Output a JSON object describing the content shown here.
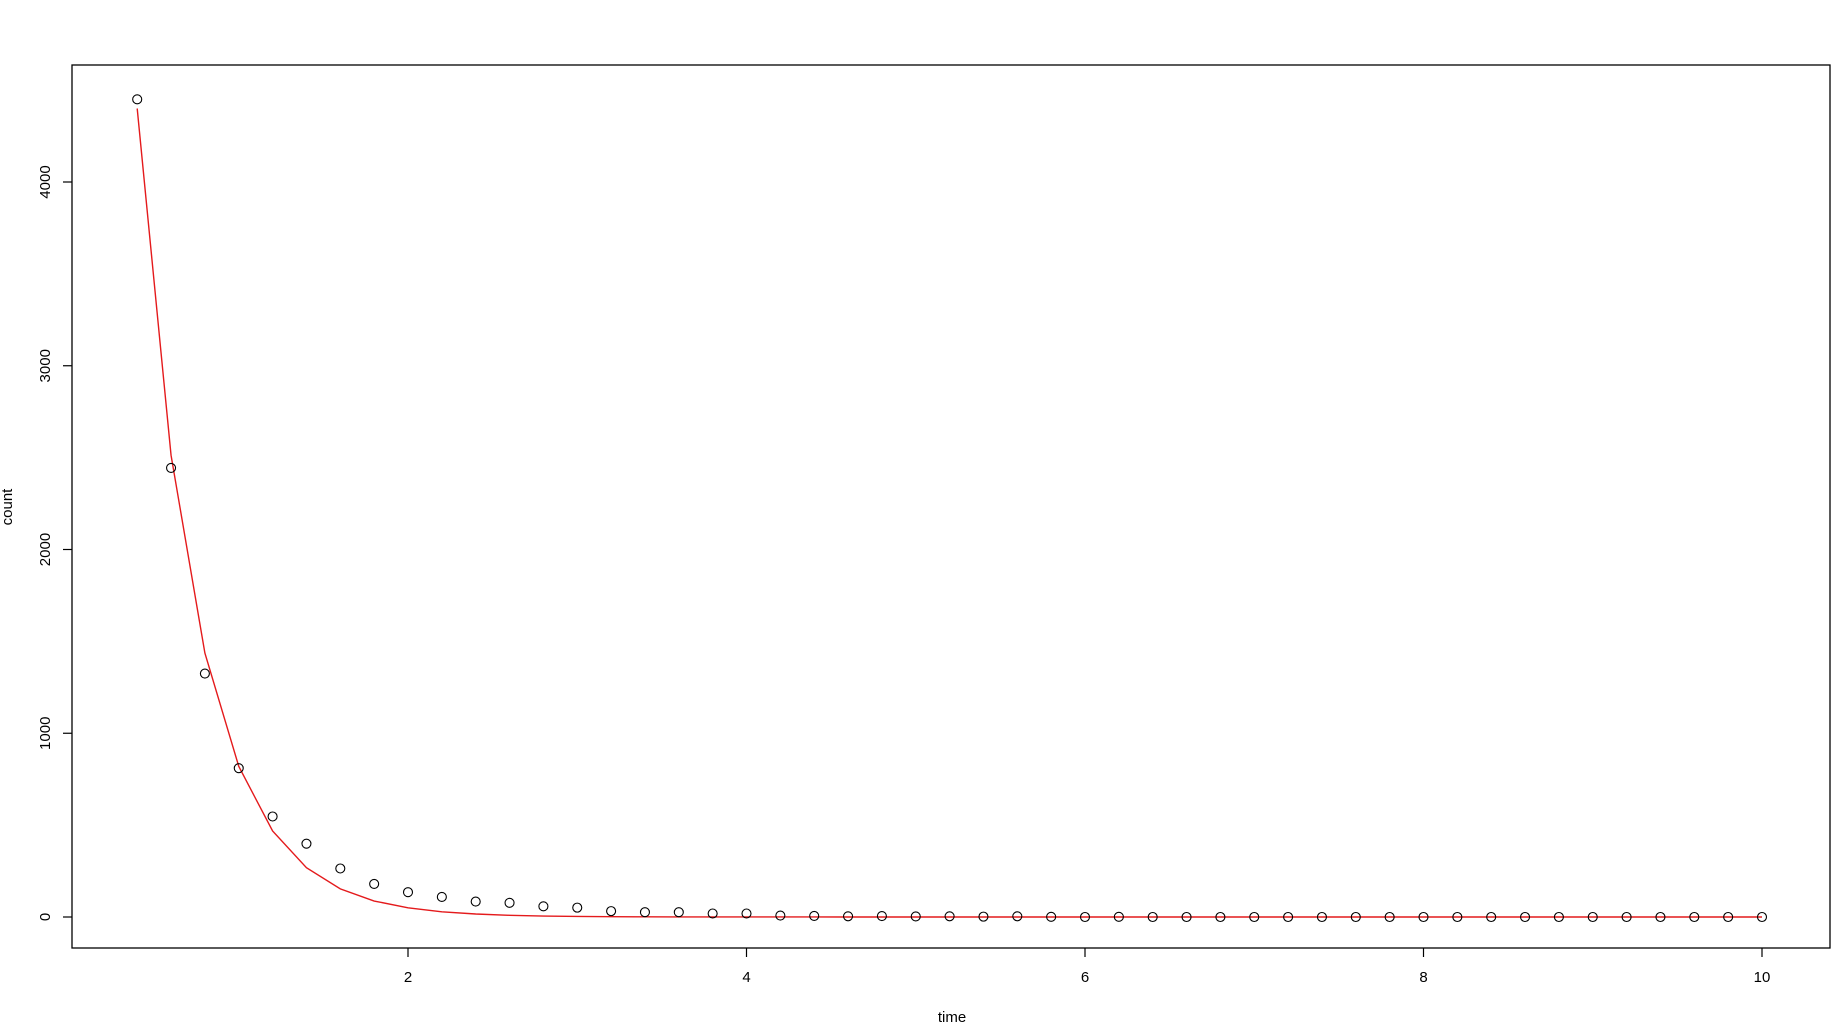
{
  "chart_data": {
    "type": "scatter",
    "title": "",
    "xlabel": "time",
    "ylabel": "count",
    "xlim": [
      0.2,
      10.2
    ],
    "ylim": [
      -180,
      4620
    ],
    "xticks": [
      2,
      4,
      6,
      8,
      10
    ],
    "yticks": [
      0,
      1000,
      2000,
      3000,
      4000
    ],
    "grid": false,
    "x": [
      0.4,
      0.6,
      0.8,
      1.0,
      1.2,
      1.4,
      1.6,
      1.8,
      2.0,
      2.2,
      2.4,
      2.6,
      2.8,
      3.0,
      3.2,
      3.4,
      3.6,
      3.8,
      4.0,
      4.2,
      4.4,
      4.6,
      4.8,
      5.0,
      5.2,
      5.4,
      5.6,
      5.8,
      6.0,
      6.2,
      6.4,
      6.6,
      6.8,
      7.0,
      7.2,
      7.4,
      7.6,
      7.8,
      8.0,
      8.2,
      8.4,
      8.6,
      8.8,
      9.0,
      9.2,
      9.4,
      9.6,
      9.8,
      10.0
    ],
    "series": [
      {
        "kind": "points",
        "color": "#000000",
        "values": [
          4450,
          2444,
          1325,
          810,
          547,
          399,
          264,
          180,
          135,
          109,
          84,
          77,
          58,
          51,
          32,
          26,
          26,
          19,
          19,
          8,
          6,
          4,
          5,
          3,
          4,
          2,
          4,
          1,
          0,
          1,
          0,
          0,
          0,
          0,
          0,
          0,
          0,
          0,
          0,
          0,
          0,
          0,
          0,
          0,
          0,
          0,
          0,
          0,
          0
        ]
      },
      {
        "kind": "line",
        "color": "#e41a1c",
        "values": [
          4400,
          2513,
          1436,
          820,
          468,
          268,
          153,
          87,
          50,
          28.5,
          16.3,
          9.3,
          5.3,
          3.0,
          1.7,
          1.0,
          0.6,
          0.3,
          0.2,
          0.1,
          0.1,
          0,
          0,
          0,
          0,
          0,
          0,
          0,
          0,
          0,
          0,
          0,
          0,
          0,
          0,
          0,
          0,
          0,
          0,
          0,
          0,
          0,
          0,
          0,
          0,
          0,
          0,
          0,
          0
        ]
      }
    ]
  }
}
